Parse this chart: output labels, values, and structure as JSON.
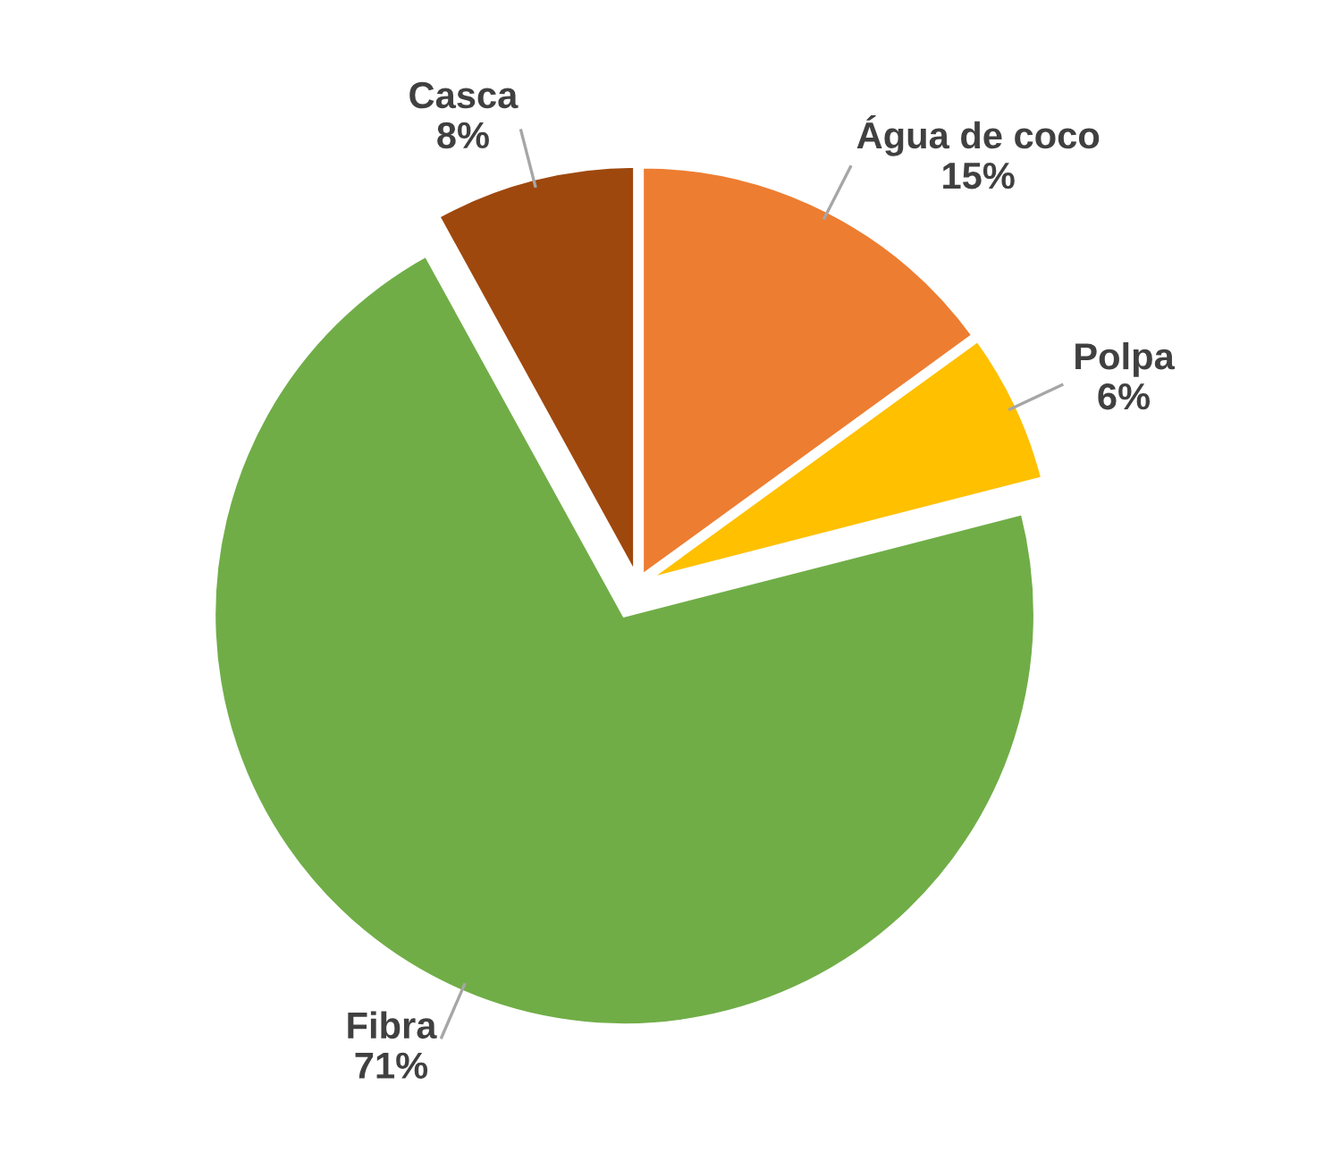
{
  "chart_data": {
    "type": "pie",
    "categories": [
      "Água de coco",
      "Polpa",
      "Fibra",
      "Casca"
    ],
    "values": [
      15,
      6,
      71,
      8
    ],
    "value_labels": [
      "15%",
      "6%",
      "71%",
      "8%"
    ],
    "colors": [
      "#ed7d31",
      "#ffc000",
      "#70ad47",
      "#9e480e"
    ],
    "legend": false
  }
}
